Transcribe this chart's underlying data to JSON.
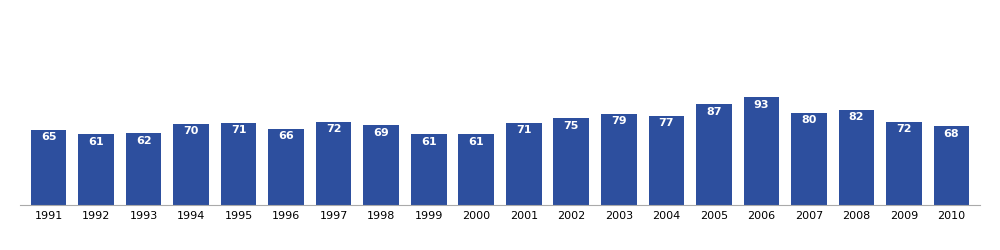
{
  "years": [
    1991,
    1992,
    1993,
    1994,
    1995,
    1996,
    1997,
    1998,
    1999,
    2000,
    2001,
    2002,
    2003,
    2004,
    2005,
    2006,
    2007,
    2008,
    2009,
    2010
  ],
  "values": [
    65,
    61,
    62,
    70,
    71,
    66,
    72,
    69,
    61,
    61,
    71,
    75,
    79,
    77,
    87,
    93,
    80,
    82,
    72,
    68
  ],
  "bar_color": "#2d4f9e",
  "label_color": "#ffffff",
  "label_fontsize": 8,
  "tick_fontsize": 8,
  "background_color": "#ffffff",
  "ylim": [
    0,
    160
  ],
  "bar_width": 0.75,
  "spine_color": "#aaaaaa"
}
